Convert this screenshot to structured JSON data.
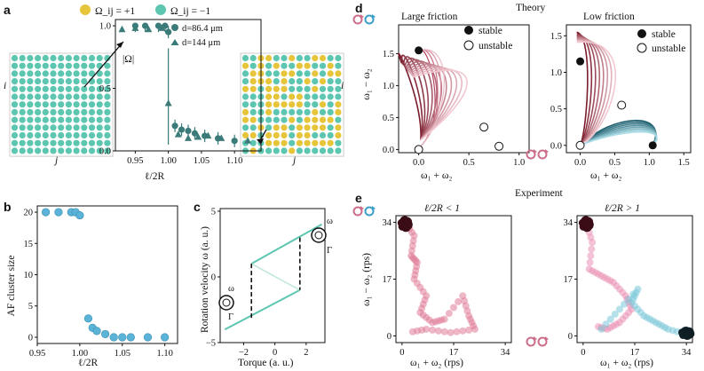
{
  "panels": {
    "a": "a",
    "b": "b",
    "c": "c",
    "d": "d",
    "e": "e"
  },
  "colors": {
    "teal": "#3b7c7a",
    "mint": "#5cc6b0",
    "yellow": "#e7c53b",
    "blue": "#5bb3d8",
    "pink": "#cc6e8a",
    "dark_red": "#7a1a2a",
    "light_teal": "#66b9c9"
  },
  "a": {
    "legend_plus": "Ω_ij = +1",
    "legend_minus": "Ω_ij = −1",
    "grid_ylabel_left": "i",
    "grid_xlabel_left": "j",
    "grid_ylabel_right": "i",
    "grid_xlabel_right": "j",
    "inset_label": "|Ω|",
    "xlabel": "ℓ/2R",
    "series1": "d=86.4 μm",
    "series2": "d=144 μm"
  },
  "b": {
    "ylabel": "AF cluster size",
    "xlabel": "ℓ/2R"
  },
  "c": {
    "ylabel": "Rotation velocity ω (a. u.)",
    "xlabel": "Torque (a. u.)",
    "omega": "ω",
    "gamma": "Γ"
  },
  "d": {
    "header": "Theory",
    "left_title": "Large friction",
    "right_title": "Low friction",
    "ylabel": "ω₁ − ω₂",
    "xlabel": "ω₁ + ω₂",
    "stable": "stable",
    "unstable": "unstable"
  },
  "e": {
    "header": "Experiment",
    "left_title": "ℓ/2R < 1",
    "right_title": "ℓ/2R > 1",
    "ylabel": "ω₁ − ω₂ (rps)",
    "xlabel": "ω₁ + ω₂ (rps)"
  },
  "chart_data": [
    {
      "type": "scatter",
      "panel": "a",
      "x": [
        0.92,
        0.95,
        0.98,
        0.99,
        1.0,
        1.01,
        1.02,
        1.03,
        1.04,
        1.05,
        1.06,
        1.07,
        1.08,
        1.09,
        1.1,
        1.11,
        1.12,
        1.13,
        1.14
      ],
      "series": [
        {
          "name": "d=86.4 μm",
          "x": [
            0.95,
            0.965,
            0.985,
            0.995,
            1.0,
            1.01,
            1.02,
            1.03,
            1.04,
            1.055,
            1.075,
            1.1
          ],
          "values": [
            1.0,
            1.0,
            1.0,
            1.0,
            0.95,
            0.2,
            0.17,
            0.16,
            0.14,
            0.12,
            0.1,
            0.08
          ]
        },
        {
          "name": "d=144 μm",
          "x": [
            0.93,
            0.95,
            0.97,
            0.99,
            1.0,
            1.015,
            1.03,
            1.045,
            1.06,
            1.08,
            1.12
          ],
          "values": [
            0.97,
            0.98,
            0.97,
            0.98,
            0.38,
            0.13,
            0.1,
            0.11,
            0.12,
            0.1,
            0.08
          ]
        }
      ],
      "xticks": [
        "0.95",
        "1.00",
        "1.05",
        "1.10"
      ],
      "yticks": [
        "0.0",
        "0.5",
        "1.0"
      ],
      "xlim": [
        0.92,
        1.14
      ],
      "ylim": [
        0,
        1.05
      ]
    },
    {
      "type": "scatter",
      "panel": "b",
      "x": [
        0.96,
        0.975,
        0.99,
        0.995,
        1.0,
        1.01,
        1.015,
        1.02,
        1.03,
        1.04,
        1.05,
        1.06,
        1.08,
        1.1
      ],
      "values": [
        20,
        20,
        20,
        20,
        19.5,
        3,
        1.5,
        1,
        0.5,
        0,
        0,
        0,
        0,
        0
      ],
      "xticks": [
        "0.95",
        "1.00",
        "1.05",
        "1.10"
      ],
      "yticks": [
        "0",
        "5",
        "10",
        "15",
        "20"
      ],
      "xlim": [
        0.95,
        1.115
      ],
      "ylim": [
        -1,
        21
      ]
    },
    {
      "type": "line",
      "panel": "c",
      "series": [
        {
          "x": [
            -1.5,
            3
          ],
          "values": [
            1,
            4
          ]
        },
        {
          "x": [
            -3.2,
            1.6
          ],
          "values": [
            -4,
            -1
          ]
        },
        {
          "x": [
            -1.5,
            1.6
          ],
          "values": [
            1,
            -1
          ]
        }
      ],
      "xticks": [
        "−2",
        "0",
        "2"
      ],
      "yticks": [
        "−5",
        "0",
        "5"
      ],
      "xlim": [
        -3.5,
        3.2
      ],
      "ylim": [
        -5,
        5.2
      ]
    },
    {
      "type": "scatter",
      "panel": "d-left",
      "xticks": [
        "0.0",
        "0.5",
        "1.0"
      ],
      "yticks": [
        "0.0",
        "0.5",
        "1.0",
        "1.5"
      ],
      "xlim": [
        -0.2,
        1.1
      ],
      "ylim": [
        -0.05,
        1.95
      ],
      "stable": [
        [
          0.0,
          1.55
        ]
      ],
      "unstable": [
        [
          0.0,
          0.0
        ],
        [
          0.65,
          0.35
        ],
        [
          0.8,
          0.05
        ]
      ]
    },
    {
      "type": "scatter",
      "panel": "d-right",
      "xticks": [
        "0.0",
        "0.5",
        "1.0",
        "1.5"
      ],
      "yticks": [
        "0.0",
        "0.5",
        "1.0",
        "1.5"
      ],
      "xlim": [
        -0.2,
        1.6
      ],
      "ylim": [
        -0.1,
        1.65
      ],
      "stable": [
        [
          0.0,
          1.15
        ],
        [
          1.05,
          0.0
        ]
      ],
      "unstable": [
        [
          0.0,
          0.0
        ],
        [
          0.6,
          0.55
        ]
      ]
    },
    {
      "type": "scatter",
      "panel": "e-left",
      "xticks": [
        "0",
        "17",
        "34"
      ],
      "yticks": [
        "0",
        "17",
        "34"
      ],
      "xlim": [
        -2,
        36
      ],
      "ylim": [
        -2,
        36
      ]
    },
    {
      "type": "scatter",
      "panel": "e-right",
      "xticks": [
        "0",
        "17",
        "34"
      ],
      "yticks": [
        "0",
        "17",
        "34"
      ],
      "xlim": [
        -2,
        36
      ],
      "ylim": [
        -2,
        36
      ]
    }
  ]
}
